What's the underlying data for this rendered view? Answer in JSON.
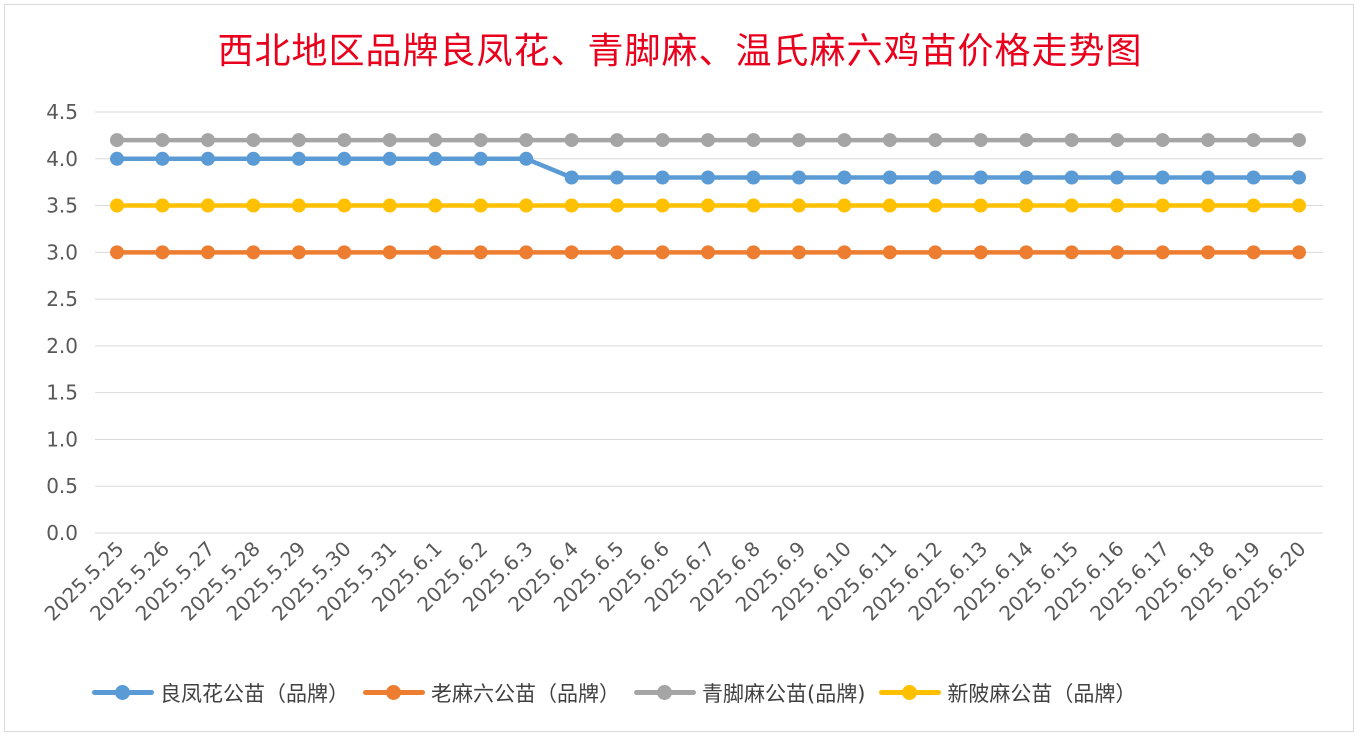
{
  "chart_data": {
    "type": "line",
    "title": "西北地区品牌良凤花、青脚麻、温氏麻六鸡苗价格走势图",
    "categories": [
      "2025.5.25",
      "2025.5.26",
      "2025.5.27",
      "2025.5.28",
      "2025.5.29",
      "2025.5.30",
      "2025.5.31",
      "2025.6.1",
      "2025.6.2",
      "2025.6.3",
      "2025.6.4",
      "2025.6.5",
      "2025.6.6",
      "2025.6.7",
      "2025.6.8",
      "2025.6.9",
      "2025.6.10",
      "2025.6.11",
      "2025.6.12",
      "2025.6.13",
      "2025.6.14",
      "2025.6.15",
      "2025.6.16",
      "2025.6.17",
      "2025.6.18",
      "2025.6.19",
      "2025.6.20"
    ],
    "yticks": [
      "0.0",
      "0.5",
      "1.0",
      "1.5",
      "2.0",
      "2.5",
      "3.0",
      "3.5",
      "4.0",
      "4.5"
    ],
    "ylim": [
      0,
      4.5
    ],
    "grid": true,
    "legend_position": "bottom",
    "series": [
      {
        "name": "良凤花公苗（品牌）",
        "color": "#5b9bd5",
        "values": [
          4.0,
          4.0,
          4.0,
          4.0,
          4.0,
          4.0,
          4.0,
          4.0,
          4.0,
          4.0,
          3.8,
          3.8,
          3.8,
          3.8,
          3.8,
          3.8,
          3.8,
          3.8,
          3.8,
          3.8,
          3.8,
          3.8,
          3.8,
          3.8,
          3.8,
          3.8,
          3.8
        ]
      },
      {
        "name": "老麻六公苗（品牌）",
        "color": "#ed7d31",
        "values": [
          3.0,
          3.0,
          3.0,
          3.0,
          3.0,
          3.0,
          3.0,
          3.0,
          3.0,
          3.0,
          3.0,
          3.0,
          3.0,
          3.0,
          3.0,
          3.0,
          3.0,
          3.0,
          3.0,
          3.0,
          3.0,
          3.0,
          3.0,
          3.0,
          3.0,
          3.0,
          3.0
        ]
      },
      {
        "name": "青脚麻公苗(品牌)",
        "color": "#a5a5a5",
        "values": [
          4.2,
          4.2,
          4.2,
          4.2,
          4.2,
          4.2,
          4.2,
          4.2,
          4.2,
          4.2,
          4.2,
          4.2,
          4.2,
          4.2,
          4.2,
          4.2,
          4.2,
          4.2,
          4.2,
          4.2,
          4.2,
          4.2,
          4.2,
          4.2,
          4.2,
          4.2,
          4.2
        ]
      },
      {
        "name": "新陂麻公苗（品牌）",
        "color": "#ffc000",
        "values": [
          3.5,
          3.5,
          3.5,
          3.5,
          3.5,
          3.5,
          3.5,
          3.5,
          3.5,
          3.5,
          3.5,
          3.5,
          3.5,
          3.5,
          3.5,
          3.5,
          3.5,
          3.5,
          3.5,
          3.5,
          3.5,
          3.5,
          3.5,
          3.5,
          3.5,
          3.5,
          3.5
        ]
      }
    ]
  }
}
